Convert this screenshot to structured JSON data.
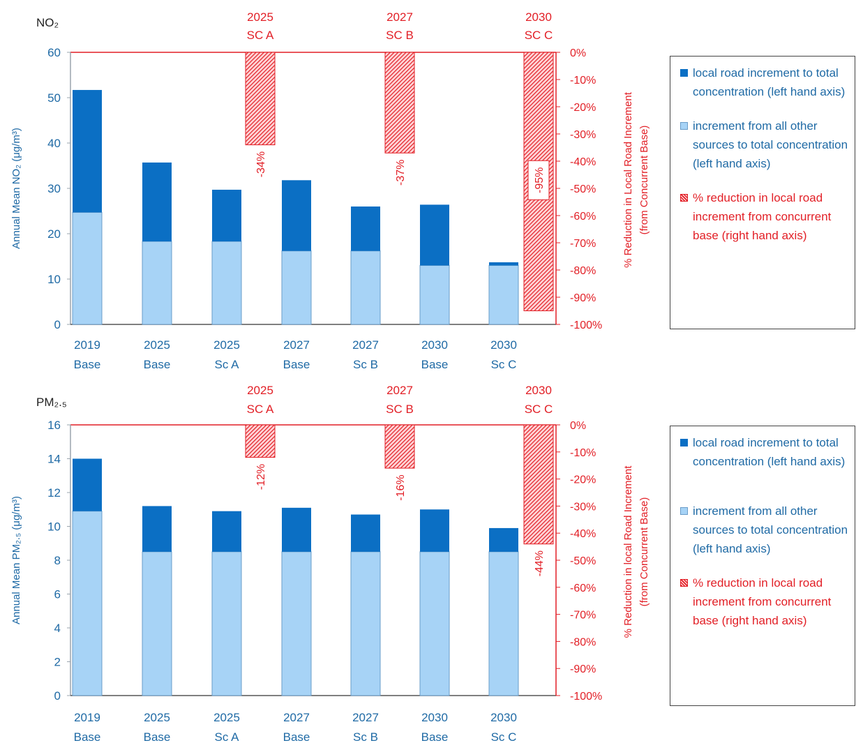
{
  "colors": {
    "local": "#0b6fc4",
    "other": "#a7d3f6",
    "other_stroke": "#6a9cc8",
    "reduction": "#e21f26",
    "axis_left": "#1f6aa5",
    "axis_right": "#e21f26"
  },
  "chart_data": [
    {
      "type": "bar",
      "title": "NO₂",
      "stacked": true,
      "categories": [
        "2019 Base",
        "2025 Base",
        "2025 Sc A",
        "2027 Base",
        "2027 Sc B",
        "2030 Base",
        "2030 Sc C"
      ],
      "category_labels": [
        [
          "2019",
          "Base"
        ],
        [
          "2025",
          "Base"
        ],
        [
          "2025",
          "Sc A"
        ],
        [
          "2027",
          "Base"
        ],
        [
          "2027",
          "Sc B"
        ],
        [
          "2030",
          "Base"
        ],
        [
          "2030",
          "Sc C"
        ]
      ],
      "ylabel": "Annual Mean NO₂ (μg/m³)",
      "ylim": [
        0,
        60
      ],
      "yticks": [
        0,
        10,
        20,
        30,
        40,
        50,
        60
      ],
      "series": [
        {
          "name": "increment from all other sources to total concentration (left hand axis)",
          "axis": "left",
          "values": [
            24.7,
            18.3,
            18.3,
            16.2,
            16.2,
            13,
            13
          ]
        },
        {
          "name": "local road increment to total concentration (left hand axis)",
          "axis": "left",
          "values": [
            27,
            17.4,
            11.4,
            15.6,
            9.8,
            13.4,
            0.7
          ]
        }
      ],
      "y2label": "% Reduction in Local Road Increment (from Concurrent Base)",
      "y2lim": [
        -100,
        0
      ],
      "y2ticks": [
        "0%",
        "-10%",
        "-20%",
        "-30%",
        "-40%",
        "-50%",
        "-60%",
        "-70%",
        "-80%",
        "-90%",
        "-100%"
      ],
      "reduction": [
        {
          "after_category": 2,
          "value": -34,
          "label": "-34%",
          "header": [
            "2025",
            "SC A"
          ]
        },
        {
          "after_category": 4,
          "value": -37,
          "label": "-37%",
          "header": [
            "2027",
            "SC B"
          ]
        },
        {
          "after_category": 6,
          "value": -95,
          "label": "-95%",
          "header": [
            "2030",
            "SC C"
          ]
        }
      ]
    },
    {
      "type": "bar",
      "title": "PM₂.₅",
      "stacked": true,
      "categories": [
        "2019 Base",
        "2025 Base",
        "2025 Sc A",
        "2027 Base",
        "2027 Sc B",
        "2030 Base",
        "2030 Sc C"
      ],
      "category_labels": [
        [
          "2019",
          "Base"
        ],
        [
          "2025",
          "Base"
        ],
        [
          "2025",
          "Sc A"
        ],
        [
          "2027",
          "Base"
        ],
        [
          "2027",
          "Sc B"
        ],
        [
          "2030",
          "Base"
        ],
        [
          "2030",
          "Sc C"
        ]
      ],
      "ylabel": "Annual Mean PM₂.₅ (μg/m³)",
      "ylim": [
        0,
        16
      ],
      "yticks": [
        0,
        2,
        4,
        6,
        8,
        10,
        12,
        14,
        16
      ],
      "series": [
        {
          "name": "increment from all other sources to total concentration (left hand axis)",
          "axis": "left",
          "values": [
            10.9,
            8.5,
            8.5,
            8.5,
            8.5,
            8.5,
            8.5
          ]
        },
        {
          "name": "local road increment to total concentration (left hand axis)",
          "axis": "left",
          "values": [
            3.1,
            2.7,
            2.4,
            2.6,
            2.2,
            2.5,
            1.4
          ]
        }
      ],
      "y2label": "% Reduction in local Road Increment (from Concurrent Base)",
      "y2lim": [
        -100,
        0
      ],
      "y2ticks": [
        "0%",
        "-10%",
        "-20%",
        "-30%",
        "-40%",
        "-50%",
        "-60%",
        "-70%",
        "-80%",
        "-90%",
        "-100%"
      ],
      "reduction": [
        {
          "after_category": 2,
          "value": -12,
          "label": "-12%",
          "header": [
            "2025",
            "SC A"
          ]
        },
        {
          "after_category": 4,
          "value": -16,
          "label": "-16%",
          "header": [
            "2027",
            "SC B"
          ]
        },
        {
          "after_category": 6,
          "value": -44,
          "label": "-44%",
          "header": [
            "2030",
            "SC C"
          ]
        }
      ]
    }
  ],
  "legends": [
    {
      "local": "local road increment to total concentration (left hand axis)",
      "other": "increment from all other sources to total concentration (left hand axis)",
      "reduction": "% reduction in local road increment from concurrent base (right hand axis)"
    },
    {
      "local": "local road increment to total concentration (left hand axis)",
      "other": "increment from all other sources to total concentration (left hand axis)",
      "reduction": "% reduction in local road increment from concurrent base (right hand axis)"
    }
  ]
}
